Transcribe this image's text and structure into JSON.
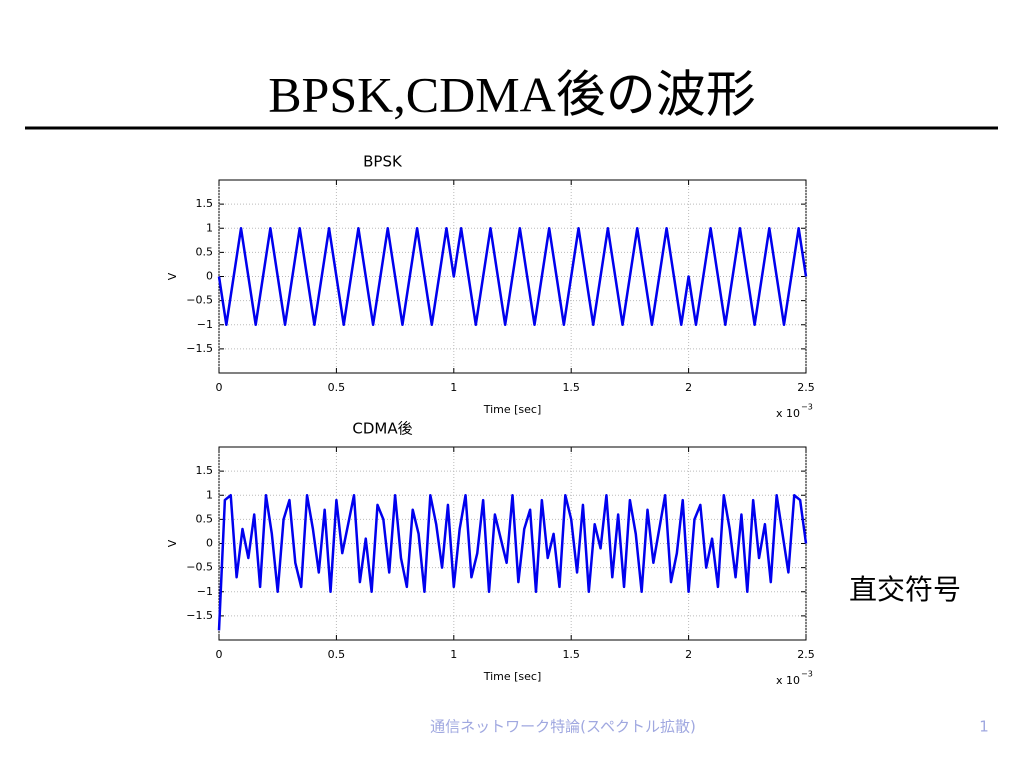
{
  "slide": {
    "title": "BPSK,CDMA後の波形",
    "side_label": "直交符号",
    "footer": "通信ネットワーク特論(スペクトル拡散)",
    "page_number": "1"
  },
  "chart_data": [
    {
      "type": "line",
      "title": "BPSK",
      "x_label": "Time [sec]",
      "y_label": "V",
      "x_multiplier": "x 10",
      "x_exponent": "−3",
      "color": "#0000ee",
      "grid": true,
      "xlim": [
        0,
        2.5
      ],
      "ylim": [
        -2,
        2
      ],
      "xticks": [
        0,
        0.5,
        1,
        1.5,
        2,
        2.5
      ],
      "yticks": [
        {
          "value": -1.5,
          "label": "−1.5"
        },
        {
          "value": -1,
          "label": "−1"
        },
        {
          "value": -0.5,
          "label": "−0.5"
        },
        0,
        0.5,
        1,
        1.5
      ],
      "x": [
        0,
        0.03125,
        0.0625,
        0.09375,
        0.125,
        0.15625,
        0.1875,
        0.21875,
        0.25,
        0.28125,
        0.3125,
        0.34375,
        0.375,
        0.40625,
        0.4375,
        0.46875,
        0.5,
        0.53125,
        0.5625,
        0.59375,
        0.625,
        0.65625,
        0.6875,
        0.71875,
        0.75,
        0.78125,
        0.8125,
        0.84375,
        0.875,
        0.90625,
        0.9375,
        0.96875,
        1,
        1.03125,
        1.0625,
        1.09375,
        1.125,
        1.15625,
        1.1875,
        1.21875,
        1.25,
        1.28125,
        1.3125,
        1.34375,
        1.375,
        1.40625,
        1.4375,
        1.46875,
        1.5,
        1.53125,
        1.5625,
        1.59375,
        1.625,
        1.65625,
        1.6875,
        1.71875,
        1.75,
        1.78125,
        1.8125,
        1.84375,
        1.875,
        1.90625,
        1.9375,
        1.96875,
        2,
        2.03125,
        2.0625,
        2.09375,
        2.125,
        2.15625,
        2.1875,
        2.21875,
        2.25,
        2.28125,
        2.3125,
        2.34375,
        2.375,
        2.40625,
        2.4375,
        2.46875,
        2.5
      ],
      "values": [
        0,
        -1,
        0,
        1,
        0,
        -1,
        0,
        1,
        0,
        -1,
        0,
        1,
        0,
        -1,
        0,
        1,
        0,
        -1,
        0,
        1,
        0,
        -1,
        0,
        1,
        0,
        -1,
        0,
        1,
        0,
        -1,
        0,
        1,
        0,
        1,
        0,
        -1,
        0,
        1,
        0,
        -1,
        0,
        1,
        0,
        -1,
        0,
        1,
        0,
        -1,
        0,
        1,
        0,
        -1,
        0,
        1,
        0,
        -1,
        0,
        1,
        0,
        -1,
        0,
        1,
        0,
        -1,
        0,
        -1,
        0,
        1,
        0,
        -1,
        0,
        1,
        0,
        -1,
        0,
        1,
        0,
        -1,
        0,
        1,
        0
      ]
    },
    {
      "type": "line",
      "title": "CDMA後",
      "x_label": "Time [sec]",
      "y_label": "V",
      "x_multiplier": "x 10",
      "x_exponent": "−3",
      "color": "#0000ee",
      "grid": true,
      "xlim": [
        0,
        2.5
      ],
      "ylim": [
        -2,
        2
      ],
      "xticks": [
        0,
        0.5,
        1,
        1.5,
        2,
        2.5
      ],
      "yticks": [
        {
          "value": -1.5,
          "label": "−1.5"
        },
        {
          "value": -1,
          "label": "−1"
        },
        {
          "value": -0.5,
          "label": "−0.5"
        },
        0,
        0.5,
        1,
        1.5
      ],
      "x": [
        0,
        0.025,
        0.05,
        0.075,
        0.1,
        0.125,
        0.15,
        0.175,
        0.2,
        0.225,
        0.25,
        0.275,
        0.3,
        0.325,
        0.35,
        0.375,
        0.4,
        0.425,
        0.45,
        0.475,
        0.5,
        0.525,
        0.55,
        0.575,
        0.6,
        0.625,
        0.65,
        0.675,
        0.7,
        0.725,
        0.75,
        0.775,
        0.8,
        0.825,
        0.85,
        0.875,
        0.9,
        0.925,
        0.95,
        0.975,
        1,
        1.025,
        1.05,
        1.075,
        1.1,
        1.125,
        1.15,
        1.175,
        1.2,
        1.225,
        1.25,
        1.275,
        1.3,
        1.325,
        1.35,
        1.375,
        1.4,
        1.425,
        1.45,
        1.475,
        1.5,
        1.525,
        1.55,
        1.575,
        1.6,
        1.625,
        1.65,
        1.675,
        1.7,
        1.725,
        1.75,
        1.775,
        1.8,
        1.825,
        1.85,
        1.875,
        1.9,
        1.925,
        1.95,
        1.975,
        2,
        2.025,
        2.05,
        2.075,
        2.1,
        2.125,
        2.15,
        2.175,
        2.2,
        2.225,
        2.25,
        2.275,
        2.3,
        2.325,
        2.35,
        2.375,
        2.4,
        2.425,
        2.45,
        2.475,
        2.5
      ],
      "values": [
        -1.8,
        0.9,
        1,
        -0.7,
        0.3,
        -0.3,
        0.6,
        -0.9,
        1,
        0.2,
        -1,
        0.5,
        0.9,
        -0.4,
        -0.9,
        1,
        0.3,
        -0.6,
        0.7,
        -1,
        0.9,
        -0.2,
        0.4,
        1,
        -0.8,
        0.1,
        -1,
        0.8,
        0.5,
        -0.6,
        1,
        -0.3,
        -0.9,
        0.7,
        0.2,
        -1,
        1,
        0.4,
        -0.5,
        0.8,
        -0.9,
        0.3,
        1,
        -0.7,
        -0.2,
        0.9,
        -1,
        0.6,
        0.1,
        -0.4,
        1,
        -0.8,
        0.3,
        0.7,
        -1,
        0.9,
        -0.3,
        0.2,
        -0.9,
        1,
        0.5,
        -0.6,
        0.8,
        -1,
        0.4,
        -0.1,
        1,
        -0.7,
        0.6,
        -0.9,
        0.9,
        0.2,
        -1,
        0.7,
        -0.4,
        0.3,
        1,
        -0.8,
        -0.2,
        0.9,
        -1,
        0.5,
        0.8,
        -0.5,
        0.1,
        -0.9,
        1,
        0.3,
        -0.7,
        0.6,
        -1,
        0.9,
        -0.3,
        0.4,
        -0.8,
        1,
        0.2,
        -0.6,
        1,
        0.9,
        0
      ]
    }
  ]
}
